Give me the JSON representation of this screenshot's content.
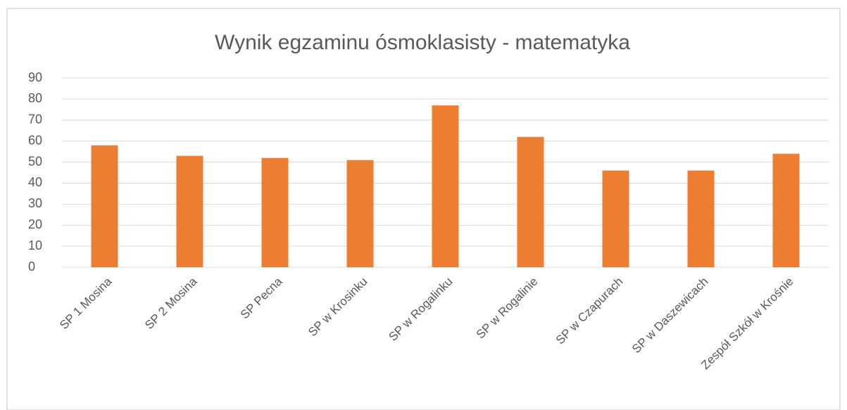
{
  "chart_data": {
    "type": "bar",
    "title": "Wynik egzaminu ósmoklasisty - matematyka",
    "categories": [
      "SP 1 Mosina",
      "SP 2 Mosina",
      "SP Pecna",
      "SP w Krosinku",
      "SP w Rogalinku",
      "SP w Rogalinie",
      "SP w Czapurach",
      "SP w Daszewicach",
      "Zespół Szkół w Krośnie"
    ],
    "values": [
      58,
      53,
      52,
      51,
      77,
      62,
      46,
      46,
      54
    ],
    "color": "#ed7d31",
    "ylim": [
      0,
      90
    ],
    "yticks": [
      0,
      10,
      20,
      30,
      40,
      50,
      60,
      70,
      80,
      90
    ],
    "grid": true
  }
}
